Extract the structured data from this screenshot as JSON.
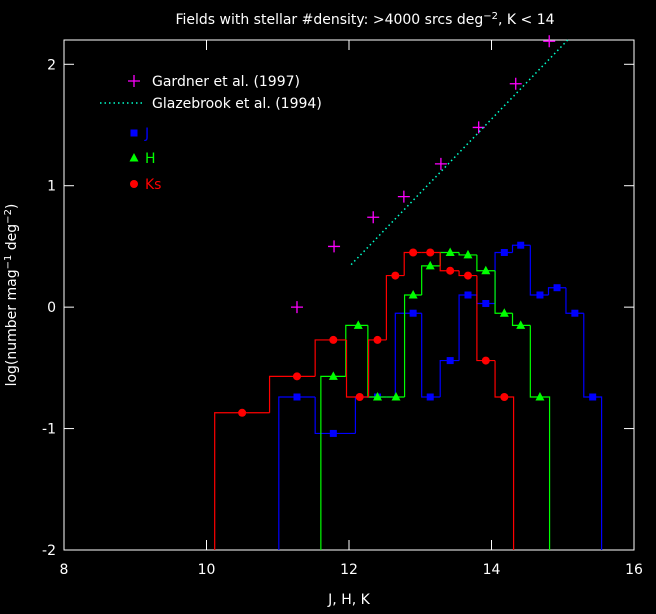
{
  "chart_data": {
    "type": "step-scatter",
    "title": [
      "Fields with stellar #density: >4000 srcs deg",
      "−2",
      ", K < 14"
    ],
    "xlabel": "J, H, K",
    "ylabel": [
      "log(number mag",
      "−1",
      " deg",
      "−2",
      ")"
    ],
    "xlim": [
      8,
      16
    ],
    "ylim": [
      -2,
      2.2
    ],
    "xticks": [
      8,
      10,
      12,
      14,
      16
    ],
    "yticks": [
      -2,
      -1,
      0,
      1,
      2
    ],
    "series": [
      {
        "name": "Gardner et al. (1997)",
        "color": "#ff00ff",
        "marker": "plus",
        "x": [
          11.27,
          11.79,
          12.34,
          12.77,
          13.29,
          13.82,
          14.34,
          14.81
        ],
        "values": [
          0.0,
          0.5,
          0.74,
          0.91,
          1.18,
          1.48,
          1.84,
          2.19
        ]
      },
      {
        "name": "Glazebrook et al. (1994)",
        "color": "#00ffcc",
        "marker": "dotted-line",
        "x": [
          12.03,
          15.07
        ],
        "values": [
          0.35,
          2.2
        ]
      },
      {
        "name": "J",
        "color": "#0000ff",
        "marker": "square",
        "steps": true,
        "x": [
          11.27,
          11.78,
          12.4,
          12.9,
          13.14,
          13.42,
          13.67,
          13.92,
          14.18,
          14.41,
          14.68,
          14.92,
          15.17,
          15.42
        ],
        "values": [
          -0.74,
          -1.04,
          -0.74,
          -0.05,
          -0.74,
          -0.44,
          0.1,
          0.03,
          0.45,
          0.51,
          0.1,
          0.16,
          -0.05,
          -0.74
        ]
      },
      {
        "name": "H",
        "color": "#00ff00",
        "marker": "triangle",
        "steps": true,
        "x": [
          11.78,
          12.13,
          12.4,
          12.66,
          12.9,
          13.14,
          13.42,
          13.67,
          13.92,
          14.18,
          14.41,
          14.68
        ],
        "values": [
          -0.57,
          -0.15,
          -0.74,
          -0.74,
          0.1,
          0.34,
          0.45,
          0.43,
          0.3,
          -0.05,
          -0.15,
          -0.74
        ]
      },
      {
        "name": "Ks",
        "color": "#ff0000",
        "marker": "circle",
        "steps": true,
        "x": [
          10.5,
          11.27,
          11.78,
          12.15,
          12.4,
          12.65,
          12.9,
          13.14,
          13.42,
          13.67,
          13.92,
          14.18
        ],
        "values": [
          -0.87,
          -0.57,
          -0.27,
          -0.74,
          -0.27,
          0.26,
          0.45,
          0.45,
          0.3,
          0.26,
          -0.44,
          -0.74
        ]
      }
    ]
  }
}
